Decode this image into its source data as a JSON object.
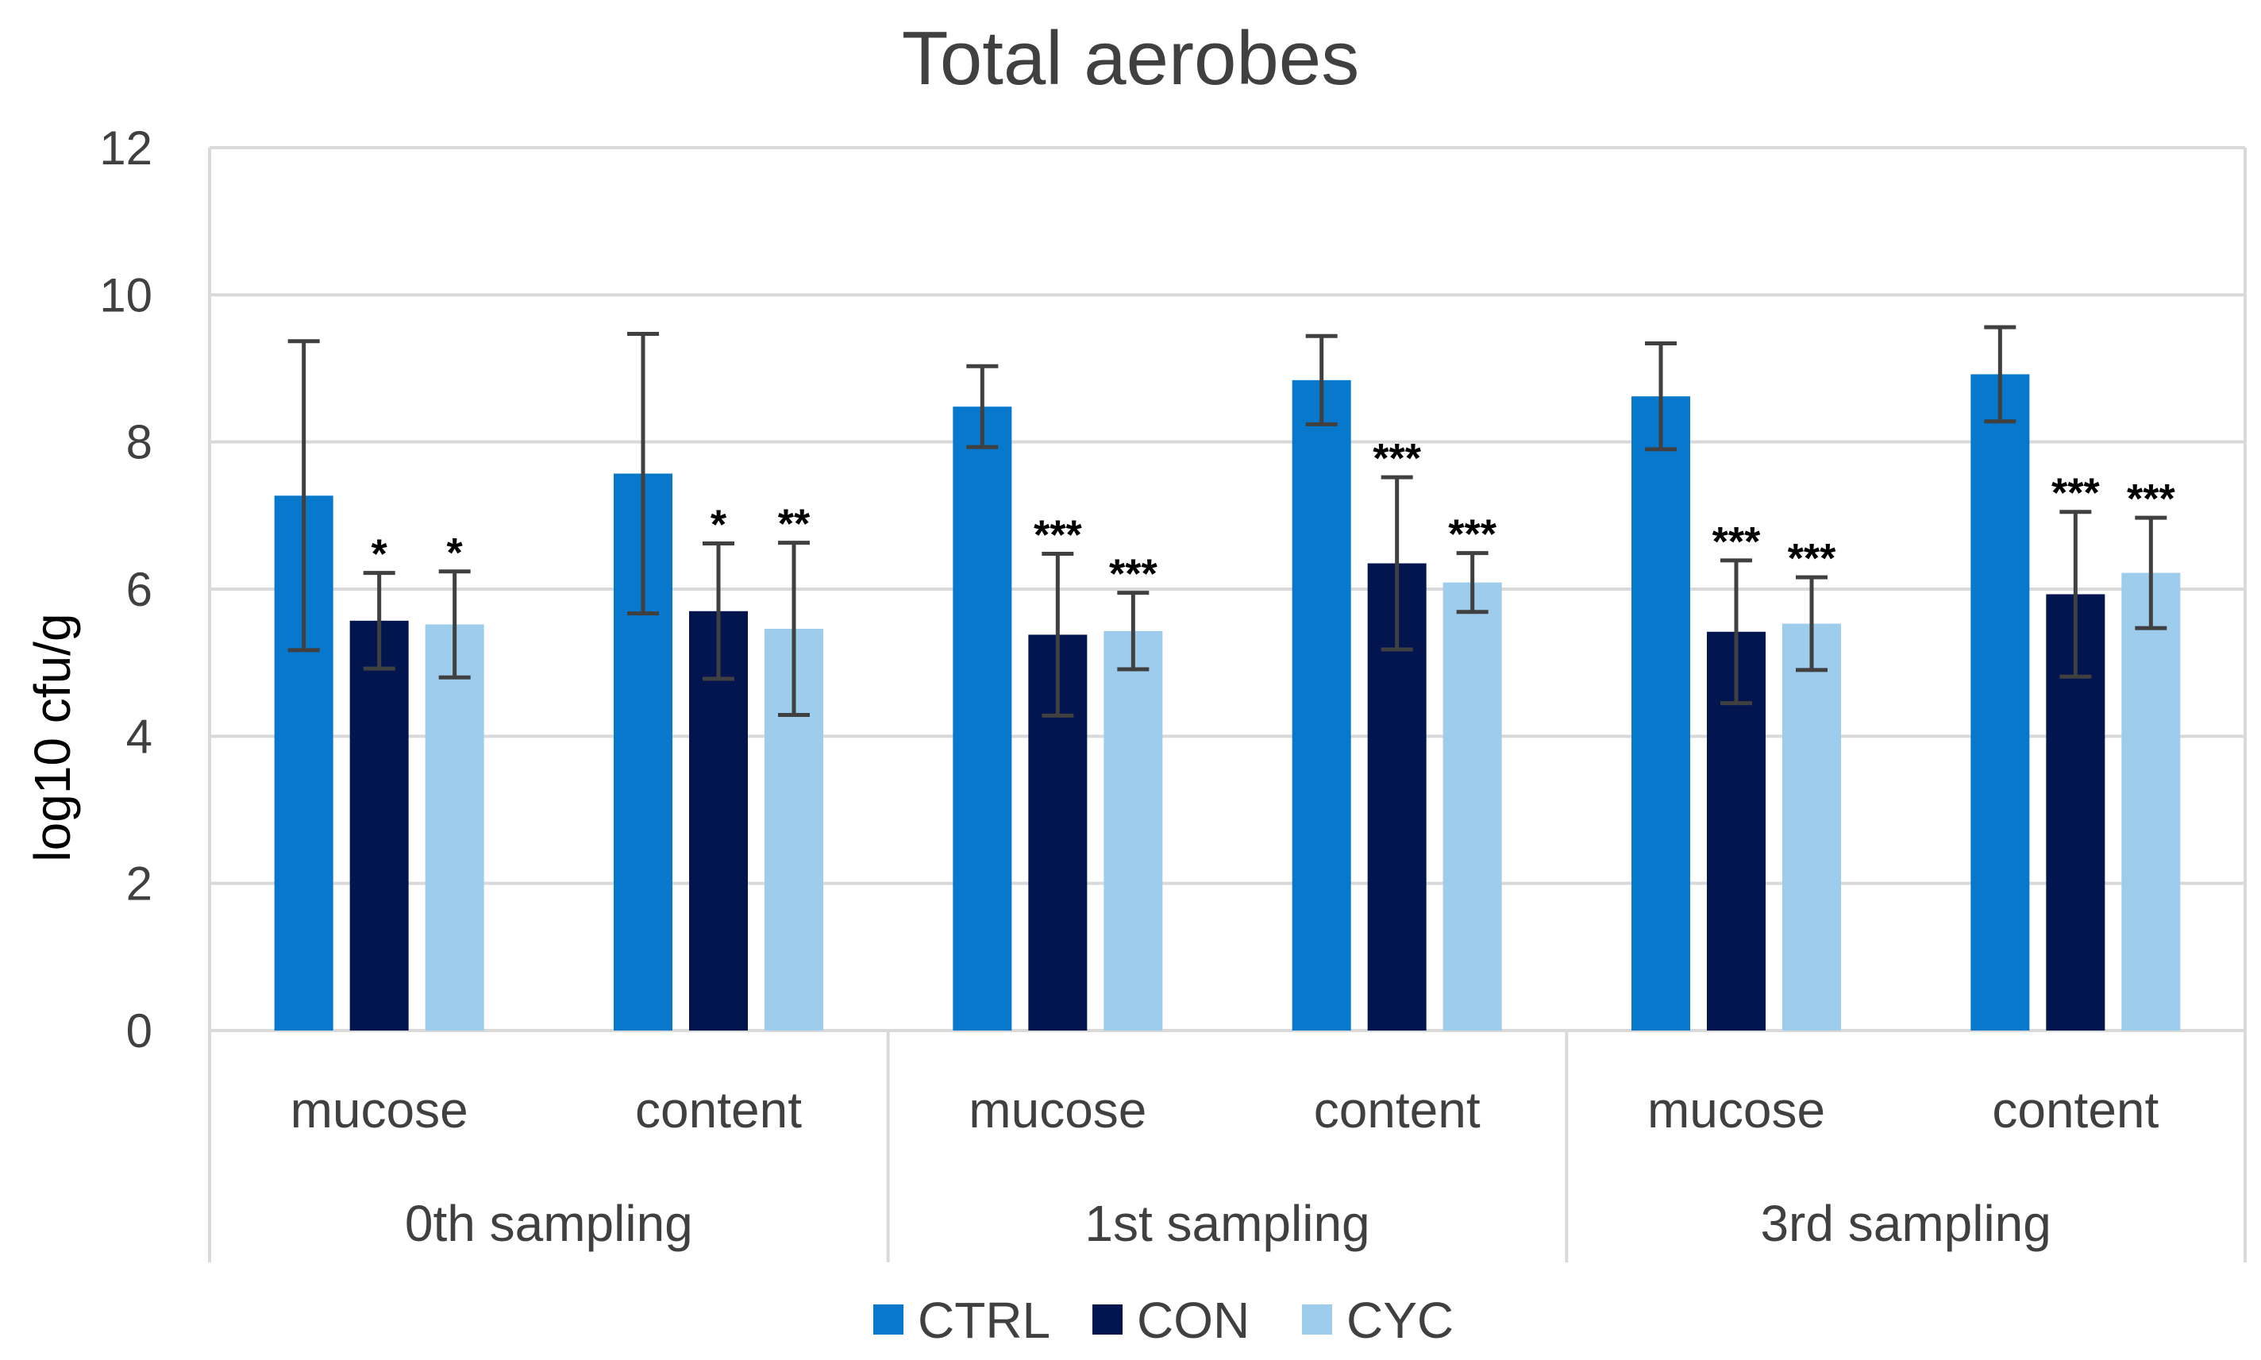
{
  "chart_data": {
    "type": "bar",
    "title": "Total aerobes",
    "xlabel": "",
    "ylabel": "log10 cfu/g",
    "ylim": [
      0,
      12
    ],
    "yticks": [
      0,
      2,
      4,
      6,
      8,
      10,
      12
    ],
    "grid": true,
    "legend_position": "bottom",
    "groups": [
      {
        "label": "0th sampling",
        "categories": [
          "mucose",
          "content"
        ]
      },
      {
        "label": "1st sampling",
        "categories": [
          "mucose",
          "content"
        ]
      },
      {
        "label": "3rd sampling",
        "categories": [
          "mucose",
          "content"
        ]
      }
    ],
    "categories": [
      "mucose",
      "content",
      "mucose",
      "content",
      "mucose",
      "content"
    ],
    "series": [
      {
        "name": "CTRL",
        "color": "#0878CC",
        "values": [
          7.27,
          7.57,
          8.48,
          8.84,
          8.62,
          8.92
        ],
        "errors": [
          2.1,
          1.9,
          0.55,
          0.6,
          0.72,
          0.64
        ],
        "significance": [
          "",
          "",
          "",
          "",
          "",
          ""
        ]
      },
      {
        "name": "CON",
        "color": "#03154F",
        "values": [
          5.57,
          5.7,
          5.38,
          6.35,
          5.42,
          5.93
        ],
        "errors": [
          0.65,
          0.92,
          1.1,
          1.17,
          0.97,
          1.12
        ],
        "significance": [
          "*",
          "*",
          "***",
          "***",
          "***",
          "***"
        ]
      },
      {
        "name": "CYC",
        "color": "#9DCCEC",
        "values": [
          5.52,
          5.46,
          5.43,
          6.09,
          5.53,
          6.22
        ],
        "errors": [
          0.72,
          1.17,
          0.52,
          0.4,
          0.63,
          0.75
        ],
        "significance": [
          "*",
          "**",
          "***",
          "***",
          "***",
          "***"
        ]
      }
    ]
  }
}
